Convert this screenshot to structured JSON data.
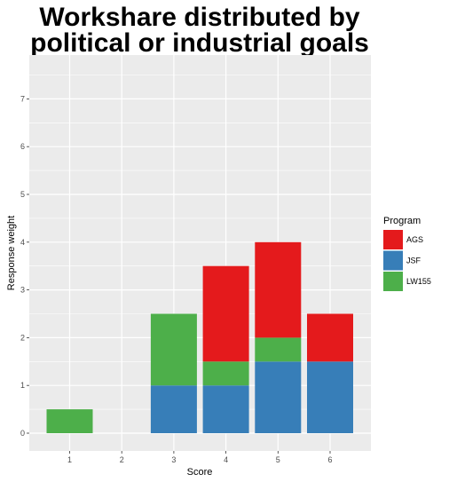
{
  "chart_data": {
    "type": "bar",
    "stacked": true,
    "title_lines": [
      "Workshare distributed by",
      "political or industrial goals"
    ],
    "xlabel": "Score",
    "ylabel": "Response weight",
    "categories": [
      "1",
      "2",
      "3",
      "4",
      "5",
      "6"
    ],
    "y_ticks": [
      "0",
      "1",
      "2",
      "3",
      "4",
      "5",
      "6",
      "7"
    ],
    "ylim": [
      0,
      7
    ],
    "grid": true,
    "legend_title": "Program",
    "legend_position": "right",
    "series": [
      {
        "name": "AGS",
        "color": "#e41a1c",
        "values": [
          0,
          0,
          0,
          2,
          2,
          1
        ]
      },
      {
        "name": "JSF",
        "color": "#377eb8",
        "values": [
          0,
          0,
          1,
          1,
          1.5,
          1.5
        ]
      },
      {
        "name": "LW155",
        "color": "#4daf4a",
        "values": [
          0.5,
          0,
          1.5,
          0.5,
          0.5,
          0
        ]
      }
    ],
    "stack_order_bottom_to_top": [
      "JSF",
      "LW155",
      "AGS"
    ],
    "panel_background": "#ebebeb",
    "grid_color": "#ffffff"
  }
}
